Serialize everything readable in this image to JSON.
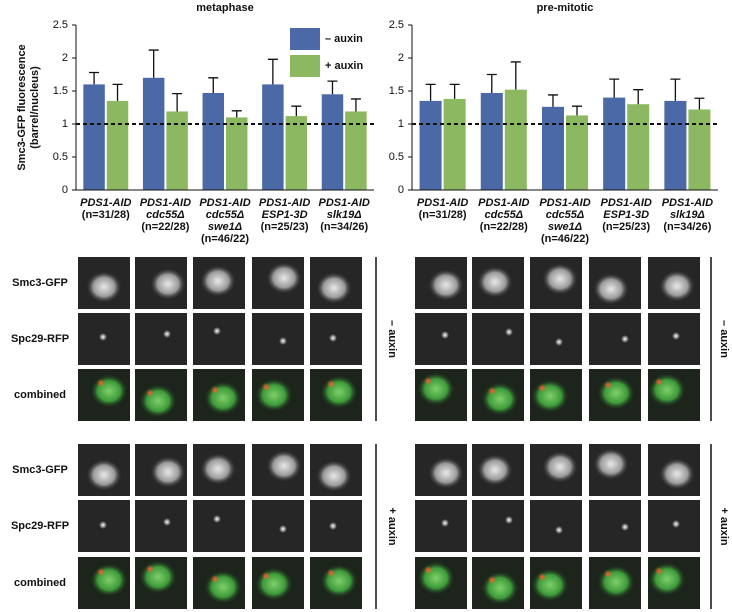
{
  "chart_data": [
    {
      "type": "bar",
      "title": "metaphase",
      "ylabel": [
        "Smc3-GFP fluorescence",
        "(barrel/nucleus)"
      ],
      "categories": [
        [
          "PDS1-AID",
          "(n=31/28)"
        ],
        [
          "PDS1-AID",
          "cdc55Δ",
          "(n=22/28)"
        ],
        [
          "PDS1-AID",
          "cdc55Δ",
          "swe1Δ",
          "(n=46/22)"
        ],
        [
          "PDS1-AID",
          "ESP1-3D",
          "(n=25/23)"
        ],
        [
          "PDS1-AID",
          "slk19Δ",
          "(n=34/26)"
        ]
      ],
      "series": [
        {
          "name": "– auxin",
          "color": "#4a69a6",
          "values": [
            1.6,
            1.7,
            1.47,
            1.6,
            1.45
          ],
          "errors": [
            0.18,
            0.42,
            0.23,
            0.38,
            0.2
          ]
        },
        {
          "name": "+ auxin",
          "color": "#8cb862",
          "values": [
            1.35,
            1.19,
            1.1,
            1.12,
            1.19
          ],
          "errors": [
            0.25,
            0.27,
            0.1,
            0.15,
            0.19
          ]
        }
      ],
      "ylim": [
        0,
        2.5
      ],
      "yticks": [
        0,
        0.5,
        1,
        1.5,
        2,
        2.5
      ],
      "hline": 1,
      "legend": "upper right"
    },
    {
      "type": "bar",
      "title": "pre-mitotic",
      "categories": [
        [
          "PDS1-AID",
          "(n=31/28)"
        ],
        [
          "PDS1-AID",
          "cdc55Δ",
          "(n=22/28)"
        ],
        [
          "PDS1-AID",
          "cdc55Δ",
          "swe1Δ",
          "(n=46/22)"
        ],
        [
          "PDS1-AID",
          "ESP1-3D",
          "(n=25/23)"
        ],
        [
          "PDS1-AID",
          "slk19Δ",
          "(n=34/26)"
        ]
      ],
      "series": [
        {
          "name": "– auxin",
          "color": "#4a69a6",
          "values": [
            1.35,
            1.47,
            1.26,
            1.4,
            1.35
          ],
          "errors": [
            0.25,
            0.28,
            0.18,
            0.28,
            0.33
          ]
        },
        {
          "name": "+ auxin",
          "color": "#8cb862",
          "values": [
            1.38,
            1.52,
            1.13,
            1.3,
            1.22
          ],
          "errors": [
            0.22,
            0.42,
            0.14,
            0.22,
            0.17
          ]
        }
      ],
      "ylim": [
        0,
        2.5
      ],
      "yticks": [
        0,
        0.5,
        1,
        1.5,
        2,
        2.5
      ],
      "hline": 1
    }
  ],
  "panels": {
    "rows": [
      "Smc3-GFP",
      "Spc29-RFP",
      "combined"
    ],
    "conditions": [
      "– auxin",
      "+ auxin"
    ]
  }
}
